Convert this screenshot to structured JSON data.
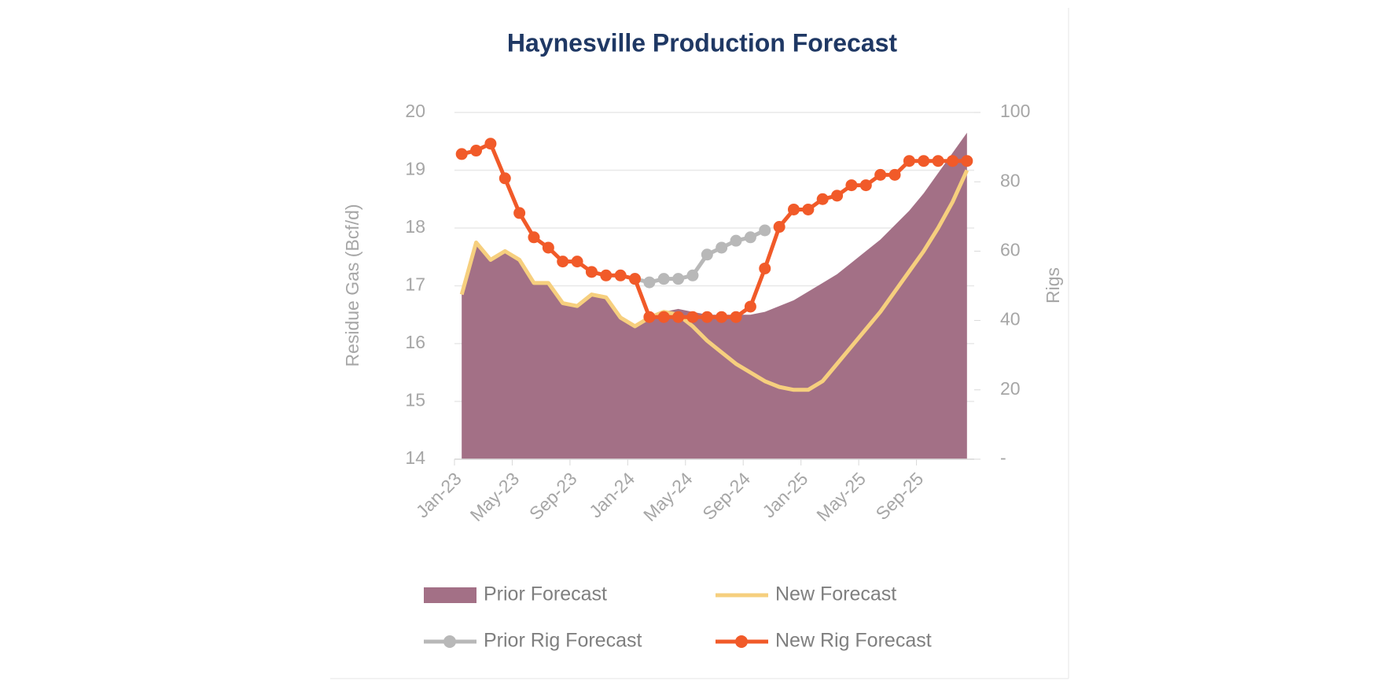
{
  "chart_data": {
    "type": "combo",
    "title": "Haynesville Production Forecast",
    "y_label": "Residue Gas (Bcf/d)",
    "y2_label": "Rigs",
    "categories": [
      "Jan-23",
      null,
      null,
      null,
      "May-23",
      null,
      null,
      null,
      "Sep-23",
      null,
      null,
      null,
      "Jan-24",
      null,
      null,
      null,
      "May-24",
      null,
      null,
      null,
      "Sep-24",
      null,
      null,
      null,
      "Jan-25",
      null,
      null,
      null,
      "May-25",
      null,
      null,
      null,
      "Sep-25",
      null,
      null,
      null
    ],
    "ylim": [
      14,
      20
    ],
    "yticks": [
      14,
      15,
      16,
      17,
      18,
      19,
      20
    ],
    "y2lim": [
      0,
      100
    ],
    "y2ticks": [
      {
        "value": 0,
        "label": "-"
      },
      20,
      40,
      60,
      80,
      100
    ],
    "grid": true,
    "series": [
      {
        "name": "Prior Forecast",
        "kind": "area",
        "color": "#a37086",
        "values": [
          16.85,
          17.75,
          17.45,
          17.6,
          17.45,
          17.05,
          17.05,
          16.7,
          16.65,
          16.85,
          16.8,
          16.45,
          16.3,
          16.45,
          16.55,
          16.6,
          16.55,
          16.5,
          16.5,
          16.5,
          16.5,
          16.55,
          16.65,
          16.75,
          16.9,
          17.05,
          17.2,
          17.4,
          17.6,
          17.8,
          18.05,
          18.3,
          18.6,
          18.95,
          19.3,
          19.65
        ]
      },
      {
        "name": "New Forecast",
        "kind": "line",
        "color": "#f6cf7e",
        "values": [
          16.85,
          17.75,
          17.45,
          17.6,
          17.45,
          17.05,
          17.05,
          16.7,
          16.65,
          16.85,
          16.8,
          16.45,
          16.3,
          16.45,
          16.55,
          16.5,
          16.3,
          16.05,
          15.85,
          15.65,
          15.5,
          15.35,
          15.25,
          15.2,
          15.2,
          15.35,
          15.65,
          15.95,
          16.25,
          16.55,
          16.9,
          17.25,
          17.6,
          18.0,
          18.45,
          19.0
        ]
      },
      {
        "name": "Prior Rig Forecast",
        "kind": "marker-line",
        "axis": "y2",
        "color": "#b8b8b8",
        "values": [
          null,
          null,
          null,
          null,
          null,
          null,
          null,
          null,
          null,
          null,
          null,
          null,
          52,
          51,
          52,
          52,
          53,
          59,
          61,
          63,
          64,
          66,
          null,
          null,
          null,
          null,
          null,
          null,
          null,
          null,
          null,
          null,
          null,
          null,
          null,
          null
        ]
      },
      {
        "name": "New Rig Forecast",
        "kind": "marker-line",
        "axis": "y2",
        "color": "#f15a29",
        "values": [
          88,
          89,
          91,
          81,
          71,
          64,
          61,
          57,
          57,
          54,
          53,
          53,
          52,
          41,
          41,
          41,
          41,
          41,
          41,
          41,
          44,
          55,
          67,
          72,
          72,
          75,
          76,
          79,
          79,
          82,
          82,
          86,
          86,
          86,
          86,
          86
        ]
      }
    ]
  }
}
